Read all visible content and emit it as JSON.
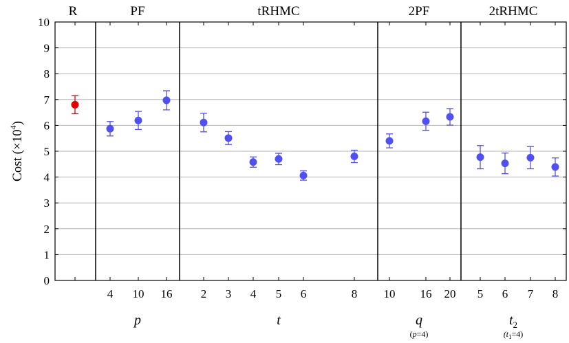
{
  "chart_data": {
    "type": "scatter",
    "ylabel": "Cost (×10",
    "ylabel_sup": "4",
    "ylabel_close": ")",
    "ylim": [
      0,
      10
    ],
    "yticks": [
      0,
      1,
      2,
      3,
      4,
      5,
      6,
      7,
      8,
      9,
      10
    ],
    "grid": true,
    "colors": {
      "random": "#e00000",
      "method": "#5050f0"
    },
    "sections": [
      {
        "label": "R",
        "xlabel": "",
        "xlabel_note": "",
        "color": "#e00000",
        "points": [
          {
            "x": "",
            "y": 6.8,
            "err": 0.35
          }
        ]
      },
      {
        "label": "PF",
        "xlabel": "p",
        "xlabel_note": "",
        "color": "#5050f0",
        "points": [
          {
            "x": "4",
            "y": 5.87,
            "err": 0.28
          },
          {
            "x": "10",
            "y": 6.19,
            "err": 0.35
          },
          {
            "x": "16",
            "y": 6.97,
            "err": 0.37
          }
        ]
      },
      {
        "label": "tRHMC",
        "xlabel": "t",
        "xlabel_note": "",
        "color": "#5050f0",
        "points": [
          {
            "x": "2",
            "y": 6.11,
            "err": 0.36
          },
          {
            "x": "3",
            "y": 5.51,
            "err": 0.25
          },
          {
            "x": "4",
            "y": 4.58,
            "err": 0.2
          },
          {
            "x": "5",
            "y": 4.7,
            "err": 0.22
          },
          {
            "x": "6",
            "y": 4.06,
            "err": 0.18
          },
          {
            "x": "8",
            "y": 4.8,
            "err": 0.24
          }
        ]
      },
      {
        "label": "2PF",
        "xlabel": "q",
        "xlabel_note": "(p=4)",
        "color": "#5050f0",
        "points": [
          {
            "x": "10",
            "y": 5.4,
            "err": 0.27
          },
          {
            "x": "16",
            "y": 6.16,
            "err": 0.35
          },
          {
            "x": "20",
            "y": 6.33,
            "err": 0.32
          }
        ]
      },
      {
        "label": "2tRHMC",
        "xlabel": "t",
        "xlabel_sub": "2",
        "xlabel_note": "(t",
        "xlabel_note_sub": "1",
        "xlabel_note_end": "=4)",
        "color": "#5050f0",
        "points": [
          {
            "x": "5",
            "y": 4.77,
            "err": 0.45
          },
          {
            "x": "6",
            "y": 4.53,
            "err": 0.4
          },
          {
            "x": "7",
            "y": 4.75,
            "err": 0.43
          },
          {
            "x": "8",
            "y": 4.39,
            "err": 0.35
          }
        ]
      }
    ]
  }
}
